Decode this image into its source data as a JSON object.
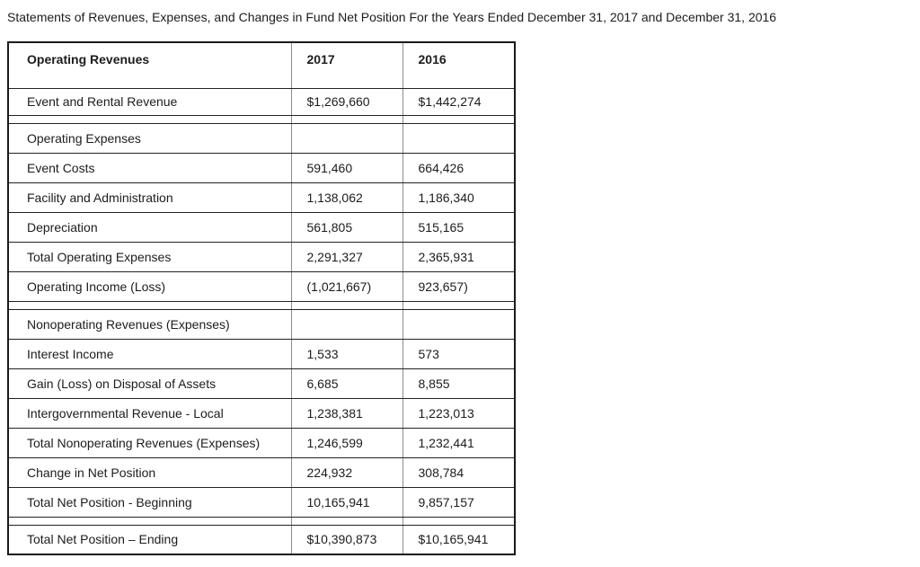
{
  "title": "Statements of Revenues, Expenses, and Changes in Fund Net Position For the Years Ended December 31, 2017 and December 31, 2016",
  "table": {
    "header": {
      "label": "Operating Revenues",
      "col_2017": "2017",
      "col_2016": "2016"
    },
    "rows": [
      {
        "kind": "data-first",
        "label": "Event and Rental Revenue",
        "v2017": "$1,269,660",
        "v2016": "$1,442,274"
      },
      {
        "kind": "spacer",
        "label": "",
        "v2017": "",
        "v2016": ""
      },
      {
        "kind": "section",
        "label": "Operating Expenses",
        "v2017": "",
        "v2016": ""
      },
      {
        "kind": "data",
        "label": "Event Costs",
        "v2017": "591,460",
        "v2016": "664,426"
      },
      {
        "kind": "data",
        "label": "Facility and Administration",
        "v2017": "1,138,062",
        "v2016": "1,186,340"
      },
      {
        "kind": "data",
        "label": "Depreciation",
        "v2017": "561,805",
        "v2016": "515,165"
      },
      {
        "kind": "data",
        "label": "Total Operating Expenses",
        "v2017": "2,291,327",
        "v2016": "2,365,931"
      },
      {
        "kind": "data",
        "label": "Operating Income (Loss)",
        "v2017": "(1,021,667)",
        "v2016": "923,657)"
      },
      {
        "kind": "spacer",
        "label": "",
        "v2017": "",
        "v2016": ""
      },
      {
        "kind": "section",
        "label": "Nonoperating Revenues (Expenses)",
        "v2017": "",
        "v2016": ""
      },
      {
        "kind": "data",
        "label": "Interest Income",
        "v2017": "1,533",
        "v2016": "573"
      },
      {
        "kind": "data",
        "label": "Gain (Loss) on Disposal of Assets",
        "v2017": "6,685",
        "v2016": "8,855"
      },
      {
        "kind": "data",
        "label": "Intergovernmental Revenue - Local",
        "v2017": "1,238,381",
        "v2016": "1,223,013"
      },
      {
        "kind": "data",
        "label": "Total Nonoperating Revenues (Expenses)",
        "v2017": "1,246,599",
        "v2016": "1,232,441"
      },
      {
        "kind": "data",
        "label": "Change in Net Position",
        "v2017": "224,932",
        "v2016": "308,784"
      },
      {
        "kind": "data",
        "label": "Total Net Position - Beginning",
        "v2017": "10,165,941",
        "v2016": "9,857,157"
      },
      {
        "kind": "spacer",
        "label": "",
        "v2017": "",
        "v2016": ""
      },
      {
        "kind": "data",
        "label": "Total Net Position – Ending",
        "v2017": "$10,390,873",
        "v2016": "$10,165,941"
      }
    ]
  },
  "colors": {
    "text": "#1c1c1c",
    "border_horizontal": "#222222",
    "border_vertical": "#8c8c8c",
    "background": "#ffffff"
  }
}
